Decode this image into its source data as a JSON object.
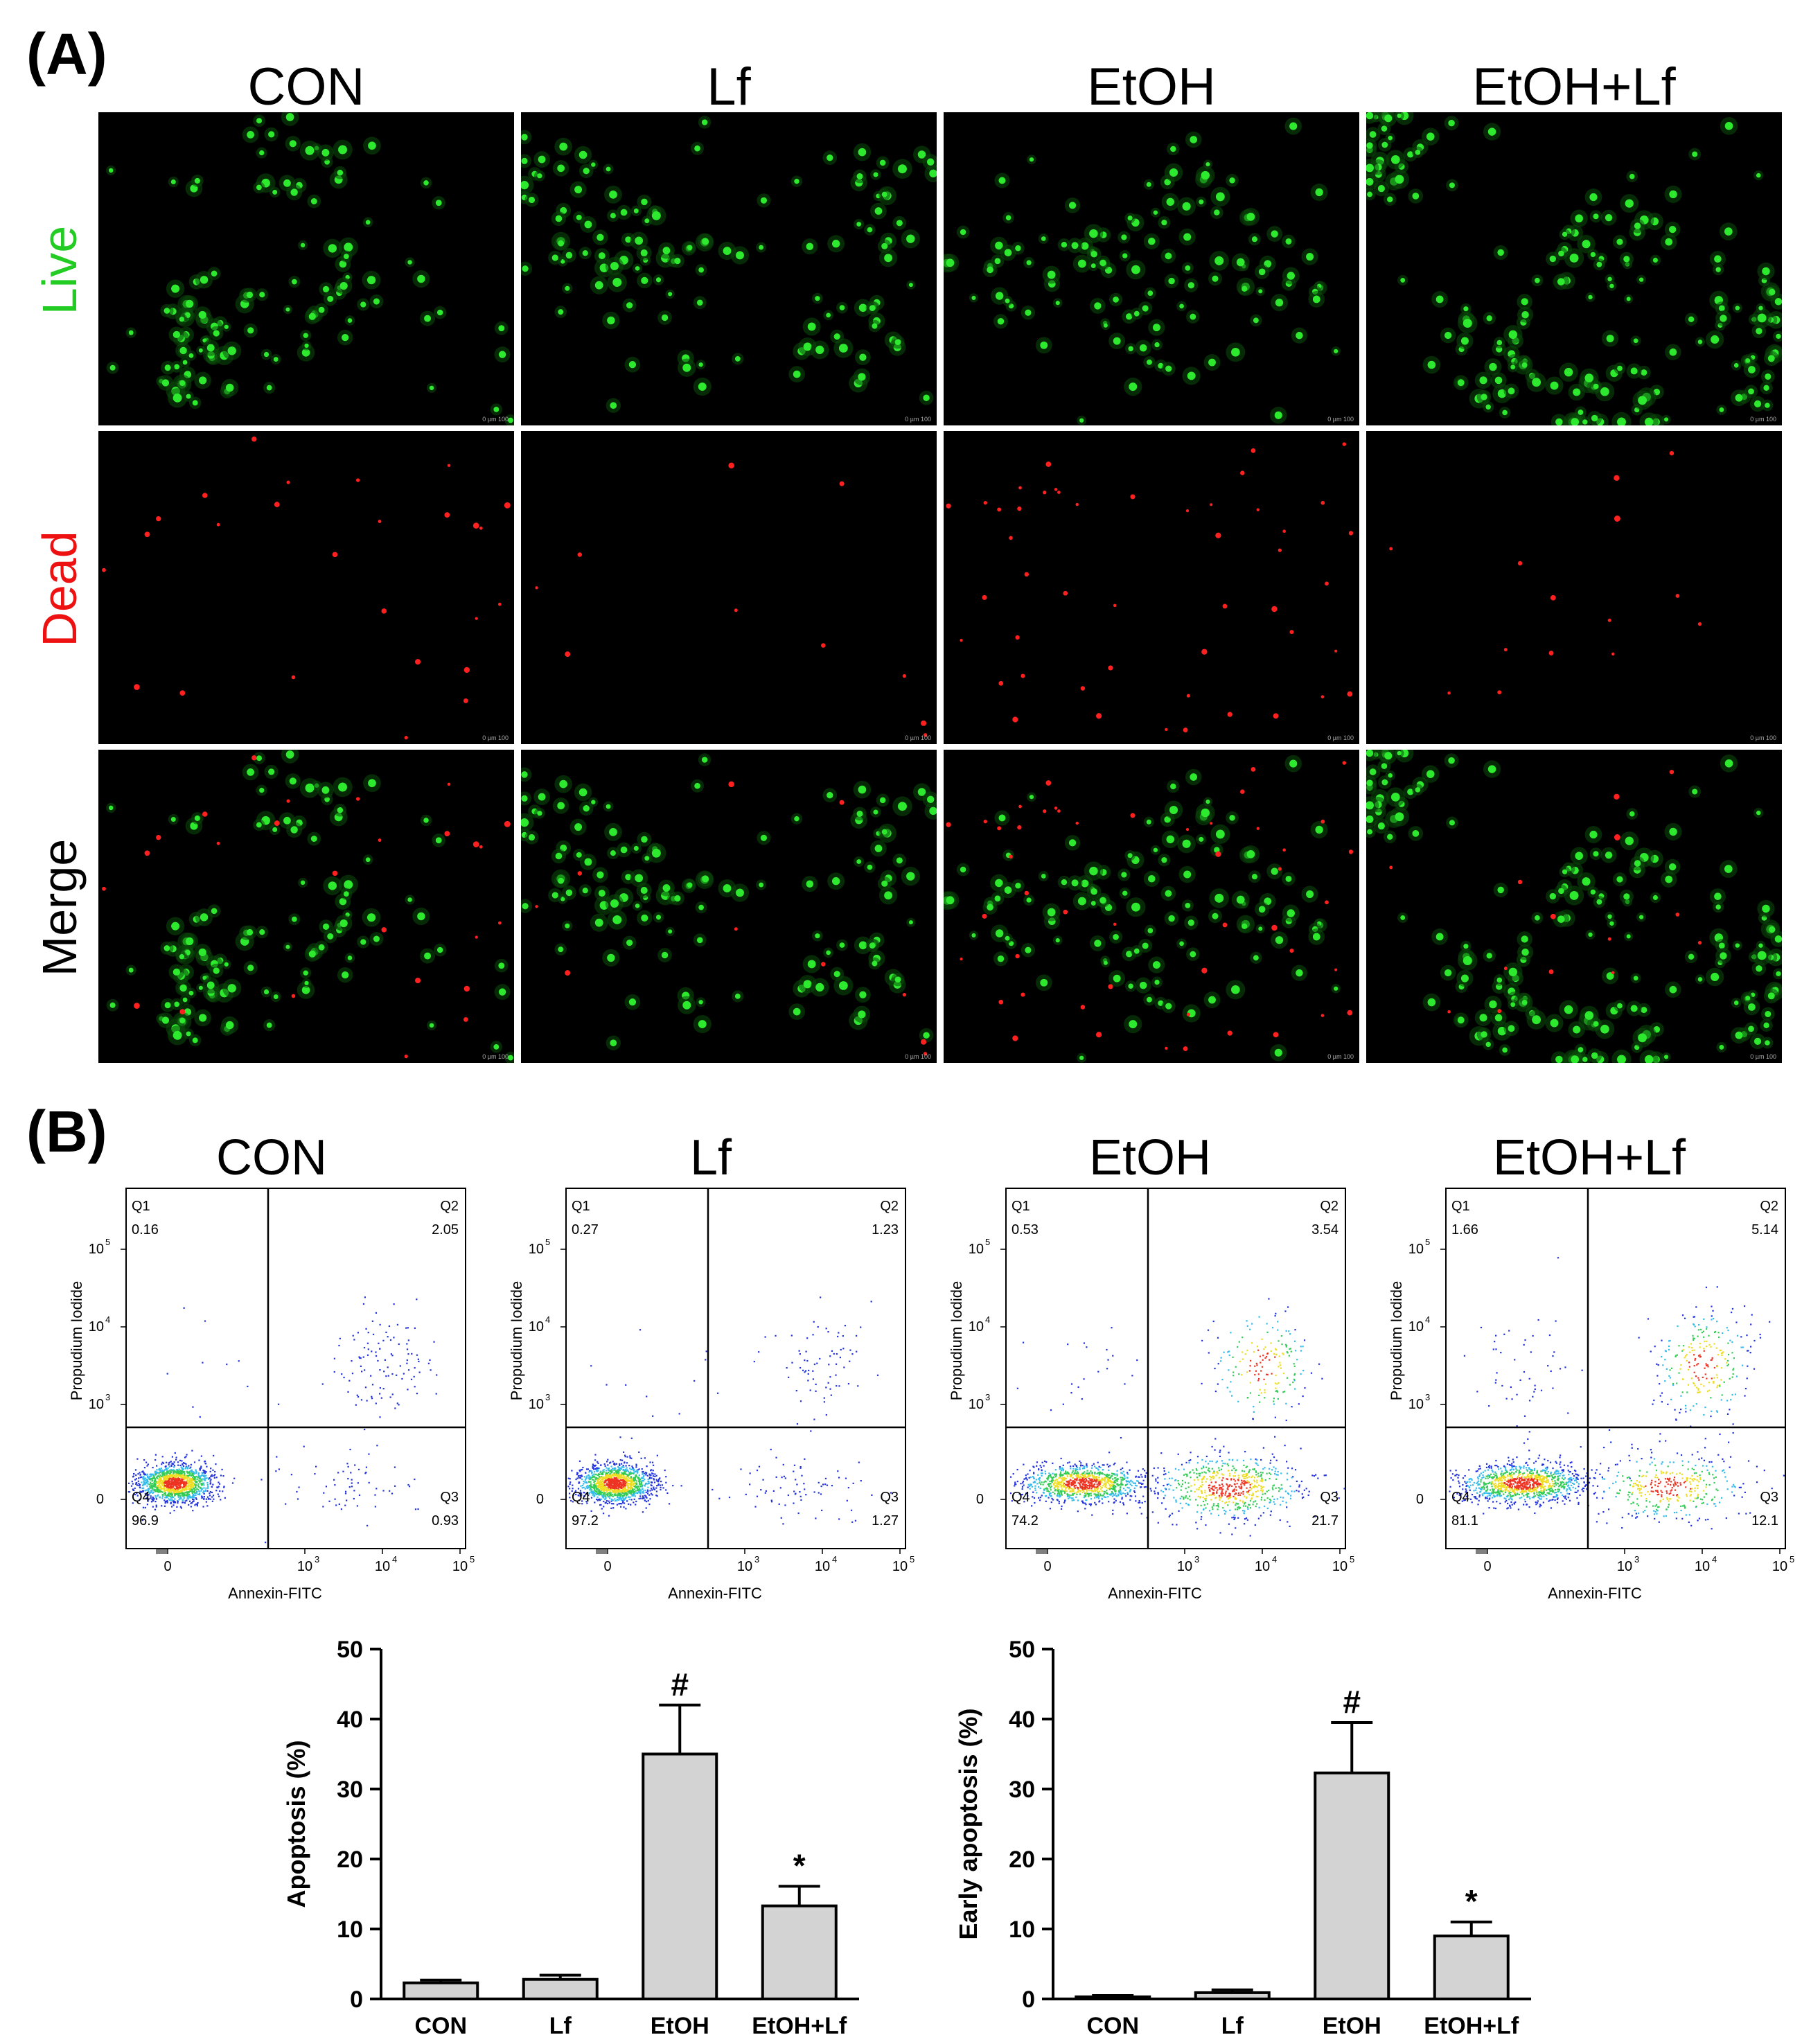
{
  "panel_a": {
    "label": "(A)",
    "columns": [
      "CON",
      "Lf",
      "EtOH",
      "EtOH+Lf"
    ],
    "rows": [
      {
        "label": "Live",
        "color": "#22cc22"
      },
      {
        "label": "Dead",
        "color": "#ee1111"
      },
      {
        "label": "Merge",
        "color": "#000000"
      }
    ],
    "scale_bar_text": "0  µm  100"
  },
  "panel_b": {
    "label": "(B)",
    "flow_plots": [
      {
        "title": "CON",
        "q1": "0.16",
        "q2": "2.05",
        "q3": "0.93",
        "q4": "96.9"
      },
      {
        "title": "Lf",
        "q1": "0.27",
        "q2": "1.23",
        "q3": "1.27",
        "q4": "97.2"
      },
      {
        "title": "EtOH",
        "q1": "0.53",
        "q2": "3.54",
        "q3": "21.7",
        "q4": "74.2"
      },
      {
        "title": "EtOH+Lf",
        "q1": "1.66",
        "q2": "5.14",
        "q3": "12.1",
        "q4": "81.1"
      }
    ],
    "quadrant_names": [
      "Q1",
      "Q2",
      "Q3",
      "Q4"
    ],
    "flow_xlabel": "Annexin-FITC",
    "flow_ylabel": "Propudium Iodide"
  },
  "chart_data": [
    {
      "type": "bar",
      "categories": [
        "CON",
        "Lf",
        "EtOH",
        "EtOH+Lf"
      ],
      "values": [
        2.3,
        2.8,
        35.0,
        13.3
      ],
      "errors": [
        0.4,
        0.6,
        7.0,
        2.8
      ],
      "significance": [
        "",
        "",
        "#",
        "*"
      ],
      "ylabel": "Apoptosis (%)",
      "ylim": [
        0,
        50
      ],
      "yticks": [
        0,
        10,
        20,
        30,
        40,
        50
      ],
      "bar_color": "#d3d3d3",
      "grid": false
    },
    {
      "type": "bar",
      "categories": [
        "CON",
        "Lf",
        "EtOH",
        "EtOH+Lf"
      ],
      "values": [
        0.3,
        0.9,
        32.3,
        9.0
      ],
      "errors": [
        0.2,
        0.4,
        7.2,
        2.0
      ],
      "significance": [
        "",
        "",
        "#",
        "*"
      ],
      "ylabel": "Early apoptosis (%)",
      "ylim": [
        0,
        50
      ],
      "yticks": [
        0,
        10,
        20,
        30,
        40,
        50
      ],
      "bar_color": "#d3d3d3",
      "grid": false
    }
  ]
}
